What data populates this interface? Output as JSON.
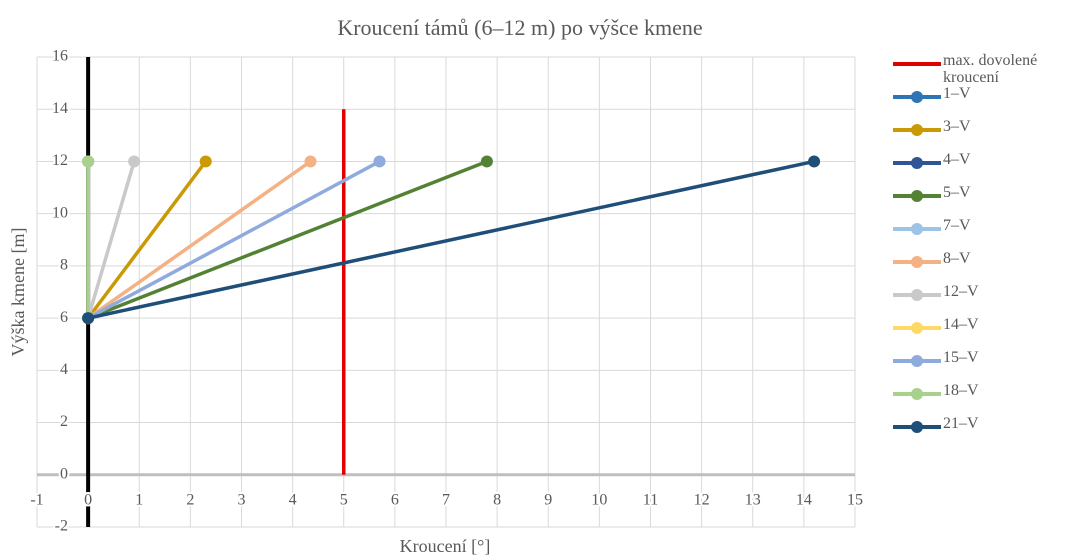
{
  "chart_data": {
    "type": "line",
    "title": "Kroucení támů (6–12 m) po výšce kmene",
    "x_label": "Kroucení [°]",
    "y_label": "Výška kmene [m]",
    "xlim": [
      -1,
      15
    ],
    "xticks": [
      -1,
      0,
      1,
      2,
      3,
      4,
      5,
      6,
      7,
      8,
      9,
      10,
      11,
      12,
      13,
      14,
      15
    ],
    "ylim": [
      -2,
      16
    ],
    "yticks": [
      -2,
      0,
      2,
      4,
      6,
      8,
      10,
      12,
      14,
      16
    ],
    "grid": true,
    "legend": "right",
    "series": [
      {
        "name": "max. dovolené kroucení",
        "color": "#e00000",
        "marker": false,
        "x": [
          5,
          5
        ],
        "values": [
          0,
          14
        ]
      },
      {
        "name": "1–V",
        "color": "#2e75b6",
        "marker": true,
        "x": [
          0,
          0
        ],
        "values": [
          6,
          12
        ]
      },
      {
        "name": "3–V",
        "color": "#c99a06",
        "marker": true,
        "x": [
          0,
          2.3
        ],
        "values": [
          6,
          12
        ]
      },
      {
        "name": "4–V",
        "color": "#2f5597",
        "marker": true,
        "x": [
          0,
          0
        ],
        "values": [
          6,
          12
        ]
      },
      {
        "name": "5–V",
        "color": "#548235",
        "marker": true,
        "x": [
          0,
          7.8
        ],
        "values": [
          6,
          12
        ]
      },
      {
        "name": "7–V",
        "color": "#9dc3e6",
        "marker": true,
        "x": [
          0,
          0
        ],
        "values": [
          6,
          12
        ]
      },
      {
        "name": "8–V",
        "color": "#f4b183",
        "marker": true,
        "x": [
          0,
          4.35
        ],
        "values": [
          6,
          12
        ]
      },
      {
        "name": "12–V",
        "color": "#c9c9c9",
        "marker": true,
        "x": [
          0,
          0.9
        ],
        "values": [
          6,
          12
        ]
      },
      {
        "name": "14–V",
        "color": "#ffd966",
        "marker": true,
        "x": [
          0,
          0
        ],
        "values": [
          6,
          12
        ]
      },
      {
        "name": "15–V",
        "color": "#8faadc",
        "marker": true,
        "x": [
          0,
          5.7
        ],
        "values": [
          6,
          12
        ]
      },
      {
        "name": "18–V",
        "color": "#a9d18e",
        "marker": true,
        "x": [
          0,
          0
        ],
        "values": [
          6,
          12
        ]
      },
      {
        "name": "21–V",
        "color": "#1f4e79",
        "marker": true,
        "x": [
          0,
          14.2
        ],
        "values": [
          6,
          12
        ]
      }
    ]
  }
}
